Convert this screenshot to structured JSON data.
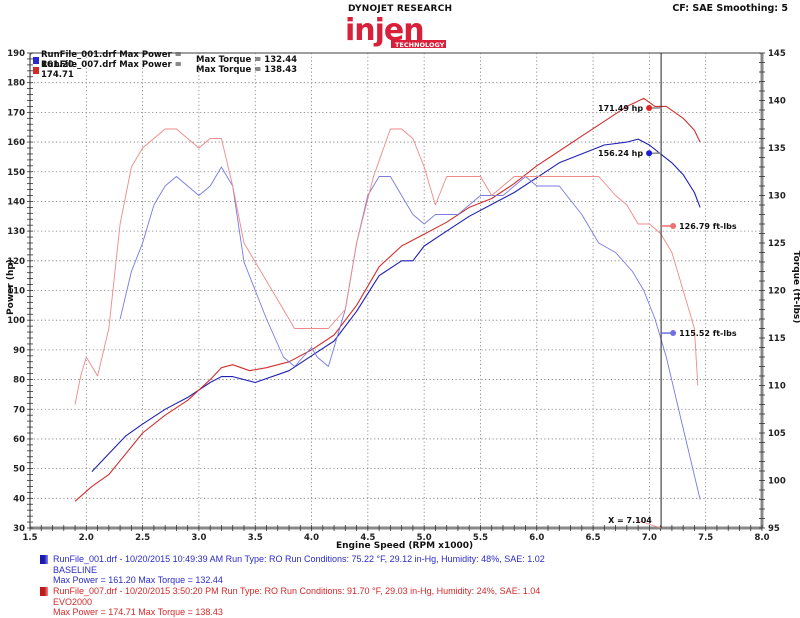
{
  "header": {
    "title": "DYNOJET RESEARCH",
    "logo_text": "injen",
    "logo_subtext": "TECHNOLOGY",
    "correction": "CF: SAE  Smoothing: 5"
  },
  "colors": {
    "blue_power": "#2020b0",
    "blue_torque": "#7a7ae0",
    "red_power": "#d03030",
    "red_torque": "#ee8a8a",
    "grid": "#888888",
    "axis": "#555555"
  },
  "inline_legend": [
    {
      "file": "RunFile_001.drf Max Power = 161.20",
      "torque": "Max Torque = 132.44",
      "color": "#2a2ad0"
    },
    {
      "file": "RunFile_007.drf Max Power = 174.71",
      "torque": "Max Torque = 138.43",
      "color": "#d02a2a"
    }
  ],
  "bottom_legend": [
    {
      "line1": "RunFile_001.drf - 10/20/2015 10:49:39 AM  Run Type: RO  Run Conditions: 75.22 °F, 29.12 in-Hg,  Humidity:  48%, SAE: 1.02",
      "line2": "BASELINE",
      "line3": "Max Power = 161.20  Max Torque = 132.44",
      "color": "#2b2bc8"
    },
    {
      "line1": "RunFile_007.drf - 10/20/2015 3:50:20 PM  Run Type: RO  Run Conditions: 91.70 °F, 29.03 in-Hg,  Humidity:  24%, SAE: 1.04",
      "line2": "EVO2000",
      "line3": "Max Power = 174.71  Max Torque = 138.43",
      "color": "#d22a2a"
    }
  ],
  "cursor": {
    "x_label": "X = 7.104",
    "x": 7.104,
    "markers": [
      {
        "label": "171.49 hp",
        "value": 171.49,
        "axis": "left",
        "color": "#e02020"
      },
      {
        "label": "156.24 hp",
        "value": 156.24,
        "axis": "left",
        "color": "#1a1ad8"
      },
      {
        "label": "126.79 ft-lbs",
        "value": 126.79,
        "axis": "right",
        "color": "#ee7070"
      },
      {
        "label": "115.52 ft-lbs",
        "value": 115.52,
        "axis": "right",
        "color": "#7070e0"
      }
    ]
  },
  "chart_data": {
    "type": "line",
    "title": "DYNOJET RESEARCH",
    "subtitle": "CF: SAE  Smoothing: 5",
    "xlabel": "Engine Speed (RPM x1000)",
    "ylabel": "Power (hp)",
    "y2label": "Torque (ft-lbs)",
    "xlim": [
      1.5,
      8.0
    ],
    "ylim": [
      30,
      190
    ],
    "y2lim": [
      95,
      145
    ],
    "xticks": [
      "1.5",
      "2.0",
      "2.5",
      "3.0",
      "3.5",
      "4.0",
      "4.5",
      "5.0",
      "5.5",
      "6.0",
      "6.5",
      "7.0",
      "7.5",
      "8.0"
    ],
    "yticks": [
      "30",
      "40",
      "50",
      "60",
      "70",
      "80",
      "90",
      "100",
      "110",
      "120",
      "130",
      "140",
      "150",
      "160",
      "170",
      "180",
      "190"
    ],
    "y2ticks": [
      "95",
      "100",
      "105",
      "110",
      "115",
      "120",
      "125",
      "130",
      "135",
      "140",
      "145"
    ],
    "grid": true,
    "legend_position": "top-left",
    "series": [
      {
        "name": "RunFile_001 Power (BASELINE)",
        "axis": "left",
        "color": "#2020b0",
        "x": [
          2.05,
          2.2,
          2.35,
          2.5,
          2.7,
          2.9,
          3.1,
          3.2,
          3.3,
          3.5,
          3.8,
          4.0,
          4.2,
          4.4,
          4.6,
          4.8,
          4.9,
          5.0,
          5.2,
          5.4,
          5.6,
          5.8,
          6.0,
          6.2,
          6.4,
          6.6,
          6.8,
          6.9,
          7.0,
          7.1,
          7.2,
          7.3,
          7.4,
          7.45
        ],
        "y": [
          49,
          55,
          61,
          65,
          70,
          74,
          79,
          81,
          81,
          79,
          83,
          88,
          93,
          103,
          115,
          120,
          120,
          125,
          130,
          135,
          139,
          143,
          148,
          153,
          156,
          159,
          160,
          161,
          159,
          156,
          153,
          149,
          143,
          138
        ]
      },
      {
        "name": "RunFile_007 Power (EVO2000)",
        "axis": "left",
        "color": "#d03030",
        "x": [
          1.9,
          2.05,
          2.2,
          2.35,
          2.5,
          2.7,
          2.9,
          3.1,
          3.2,
          3.3,
          3.45,
          3.6,
          3.8,
          4.0,
          4.2,
          4.4,
          4.6,
          4.8,
          5.0,
          5.2,
          5.4,
          5.6,
          5.8,
          6.0,
          6.2,
          6.4,
          6.6,
          6.8,
          6.95,
          7.05,
          7.15,
          7.3,
          7.4,
          7.45
        ],
        "y": [
          39,
          44,
          48,
          55,
          62,
          68,
          73,
          80,
          84,
          85,
          83,
          84,
          86,
          90,
          95,
          105,
          118,
          125,
          129,
          133,
          138,
          141,
          146,
          152,
          157,
          162,
          167,
          172,
          174.7,
          172,
          172,
          168,
          164,
          160
        ]
      },
      {
        "name": "RunFile_001 Torque (BASELINE)",
        "axis": "right",
        "color": "#7a7ae0",
        "x": [
          2.3,
          2.4,
          2.5,
          2.6,
          2.7,
          2.8,
          3.0,
          3.1,
          3.2,
          3.3,
          3.4,
          3.6,
          3.75,
          3.85,
          4.0,
          4.05,
          4.15,
          4.3,
          4.4,
          4.5,
          4.6,
          4.7,
          4.8,
          4.9,
          5.0,
          5.1,
          5.3,
          5.5,
          5.7,
          5.9,
          6.0,
          6.2,
          6.4,
          6.55,
          6.7,
          6.85,
          6.95,
          7.05,
          7.15,
          7.25,
          7.35,
          7.45
        ],
        "y": [
          117,
          122,
          125,
          129,
          131,
          132,
          130,
          131,
          133,
          131,
          123,
          117,
          113,
          112,
          114,
          113,
          112,
          118,
          125,
          130,
          132,
          132,
          130,
          128,
          127,
          128,
          128,
          130,
          130,
          132,
          131,
          131,
          128,
          125,
          124,
          122,
          120,
          117,
          113,
          108,
          103,
          98
        ]
      },
      {
        "name": "RunFile_007 Torque (EVO2000)",
        "axis": "right",
        "color": "#ee8a8a",
        "x": [
          1.9,
          1.95,
          2.0,
          2.1,
          2.2,
          2.3,
          2.4,
          2.5,
          2.6,
          2.7,
          2.8,
          3.0,
          3.1,
          3.2,
          3.3,
          3.4,
          3.55,
          3.7,
          3.85,
          4.0,
          4.15,
          4.3,
          4.4,
          4.55,
          4.7,
          4.8,
          4.9,
          5.0,
          5.1,
          5.2,
          5.35,
          5.5,
          5.6,
          5.8,
          6.0,
          6.2,
          6.4,
          6.55,
          6.7,
          6.8,
          6.9,
          7.0,
          7.1,
          7.2,
          7.3,
          7.4,
          7.43
        ],
        "y": [
          108,
          111,
          113,
          111,
          116,
          127,
          133,
          135,
          136,
          137,
          137,
          135,
          136,
          136,
          131,
          125,
          122,
          119,
          116,
          116,
          116,
          118,
          125,
          132,
          137,
          137,
          136,
          133,
          129,
          132,
          132,
          132,
          130,
          132,
          132,
          132,
          132,
          132,
          130,
          129,
          127,
          127,
          126,
          124,
          120,
          116,
          110
        ]
      }
    ]
  }
}
